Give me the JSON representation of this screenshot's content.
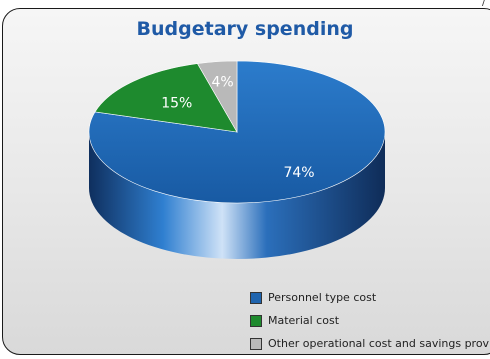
{
  "chart_data": {
    "type": "pie",
    "title": "Budgetary spending",
    "categories": [
      "Personnel type cost",
      "Material cost",
      "Other operational cost and savings provisi"
    ],
    "values": [
      74,
      15,
      4
    ],
    "labels": [
      "74%",
      "15%",
      "4%"
    ],
    "colors": [
      "#1f64ae",
      "#1e8a2e",
      "#b9b9b9"
    ],
    "legend": "bottom-right",
    "style": "3d"
  },
  "corner_mark": "/"
}
